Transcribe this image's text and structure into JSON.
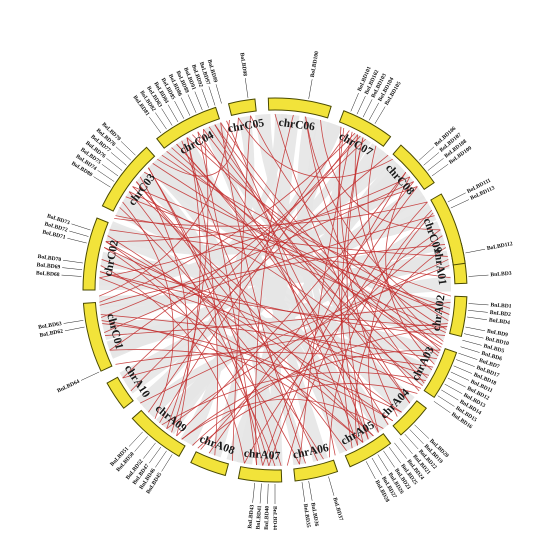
{
  "colors": {
    "chromosome_fill": "#f2e33a",
    "chromosome_stroke": "#6b6200",
    "synteny_background": "#e6e6e6",
    "duplicated_pair_link": "#c22b2b"
  },
  "chromosomes": [
    {
      "name": "chrA01",
      "start": -14,
      "end": -2
    },
    {
      "name": "chrA02",
      "start": 2,
      "end": 14
    },
    {
      "name": "chrA03",
      "start": 19,
      "end": 34
    },
    {
      "name": "chrA04",
      "start": 38,
      "end": 49
    },
    {
      "name": "chrA05",
      "start": 53,
      "end": 67
    },
    {
      "name": "chrA06",
      "start": 71,
      "end": 84
    },
    {
      "name": "chrA07",
      "start": 88,
      "end": 101
    },
    {
      "name": "chrA08",
      "start": 105,
      "end": 116
    },
    {
      "name": "chrA09",
      "start": 120,
      "end": 138
    },
    {
      "name": "chrA10",
      "start": 142,
      "end": 151
    },
    {
      "name": "chrC01",
      "start": 155,
      "end": 176
    },
    {
      "name": "chrC02",
      "start": 180,
      "end": 202
    },
    {
      "name": "chrC03",
      "start": 206,
      "end": 228
    },
    {
      "name": "chrC04",
      "start": 232,
      "end": 252
    },
    {
      "name": "chrC05",
      "start": 256,
      "end": 264
    },
    {
      "name": "chrC06",
      "start": 268,
      "end": 287
    },
    {
      "name": "chrC07",
      "start": 291,
      "end": 307
    },
    {
      "name": "chrC08",
      "start": 311,
      "end": 326
    },
    {
      "name": "chrC09",
      "start": 330,
      "end": 352
    }
  ],
  "genes": [
    {
      "label": "BoLBD112",
      "angle": -11
    },
    {
      "label": "BnLBD3",
      "angle": -4
    },
    {
      "label": "BnLBD1",
      "angle": 4
    },
    {
      "label": "BnLBD2",
      "angle": 6
    },
    {
      "label": "BnLBD4",
      "angle": 8
    },
    {
      "label": "BnLBD9",
      "angle": 11
    },
    {
      "label": "BnLBD10",
      "angle": 13
    },
    {
      "label": "BnLBD5",
      "angle": 15
    },
    {
      "label": "BnLBD6",
      "angle": 17
    },
    {
      "label": "BnLBD7",
      "angle": 19
    },
    {
      "label": "BnLBD17",
      "angle": 21
    },
    {
      "label": "BnLBD18",
      "angle": 23
    },
    {
      "label": "BnLBD11",
      "angle": 25
    },
    {
      "label": "BnLBD12",
      "angle": 27
    },
    {
      "label": "BnLBD13",
      "angle": 29
    },
    {
      "label": "BnLBD14",
      "angle": 31
    },
    {
      "label": "BnLBD15",
      "angle": 33
    },
    {
      "label": "BnLBD16",
      "angle": 35
    },
    {
      "label": "BnLBD20",
      "angle": 44
    },
    {
      "label": "BnLBD19",
      "angle": 46
    },
    {
      "label": "BnLBD22",
      "angle": 48
    },
    {
      "label": "BnLBD21",
      "angle": 50
    },
    {
      "label": "BnLBD24",
      "angle": 52
    },
    {
      "label": "BnLBD25",
      "angle": 54
    },
    {
      "label": "BnLBD23",
      "angle": 56
    },
    {
      "label": "BnLBD26",
      "angle": 58
    },
    {
      "label": "BnLBD27",
      "angle": 60
    },
    {
      "label": "BnLBD28",
      "angle": 62
    },
    {
      "label": "BnLBD37",
      "angle": 74
    },
    {
      "label": "BnLBD36",
      "angle": 80
    },
    {
      "label": "BnLBD35",
      "angle": 82
    },
    {
      "label": "BnLBD44",
      "angle": 90
    },
    {
      "label": "BnLBD40",
      "angle": 92
    },
    {
      "label": "BnLBD41",
      "angle": 94
    },
    {
      "label": "BnLBD43",
      "angle": 96
    },
    {
      "label": "BnLBD45",
      "angle": 122
    },
    {
      "label": "BnLBD46",
      "angle": 124
    },
    {
      "label": "BnLBD47",
      "angle": 126
    },
    {
      "label": "BnLBD52",
      "angle": 128
    },
    {
      "label": "BnLBD50",
      "angle": 131
    },
    {
      "label": "BnLBD51",
      "angle": 133
    },
    {
      "label": "BnLBD64",
      "angle": 155
    },
    {
      "label": "BoLBD62",
      "angle": 169
    },
    {
      "label": "BoLBD63",
      "angle": 171
    },
    {
      "label": "BoLBD68",
      "angle": 184
    },
    {
      "label": "BoLBD69",
      "angle": 186
    },
    {
      "label": "BoLBD70",
      "angle": 188
    },
    {
      "label": "BoLBD71",
      "angle": 194
    },
    {
      "label": "BoLBD72",
      "angle": 196
    },
    {
      "label": "BoLBD73",
      "angle": 198
    },
    {
      "label": "BoLBD80",
      "angle": 212
    },
    {
      "label": "BoLBD74",
      "angle": 214
    },
    {
      "label": "BoLBD75",
      "angle": 216
    },
    {
      "label": "BoLBD76",
      "angle": 218
    },
    {
      "label": "BoLBD77",
      "angle": 220
    },
    {
      "label": "BoLBD78",
      "angle": 222
    },
    {
      "label": "BoLBD79",
      "angle": 224
    },
    {
      "label": "BoLBD81",
      "angle": 234
    },
    {
      "label": "BoLBD82",
      "angle": 236
    },
    {
      "label": "BoLBD83",
      "angle": 238
    },
    {
      "label": "BoLBD84",
      "angle": 240
    },
    {
      "label": "BoLBD85",
      "angle": 242
    },
    {
      "label": "BoLBD86",
      "angle": 244
    },
    {
      "label": "BoLBD89",
      "angle": 246
    },
    {
      "label": "BoLBD91",
      "angle": 248
    },
    {
      "label": "BoLBD92",
      "angle": 250
    },
    {
      "label": "BoLBD97",
      "angle": 252
    },
    {
      "label": "BoLBD99",
      "angle": 254
    },
    {
      "label": "BoLBD98",
      "angle": 262
    },
    {
      "label": "BoLBD100",
      "angle": 280
    },
    {
      "label": "BoLBD101",
      "angle": 293
    },
    {
      "label": "BoLBD102",
      "angle": 295
    },
    {
      "label": "BoLBD103",
      "angle": 297
    },
    {
      "label": "BoLBD104",
      "angle": 299
    },
    {
      "label": "BoLBD105",
      "angle": 301
    },
    {
      "label": "BoLBD106",
      "angle": 318
    },
    {
      "label": "BoLBD107",
      "angle": 320
    },
    {
      "label": "BoLBD108",
      "angle": 322
    },
    {
      "label": "BoLBD109",
      "angle": 324
    },
    {
      "label": "BoLBD111",
      "angle": 333
    },
    {
      "label": "BoLBD113",
      "angle": 335
    }
  ],
  "links": [
    [
      -4,
      200
    ],
    [
      4,
      165
    ],
    [
      6,
      216
    ],
    [
      8,
      240
    ],
    [
      11,
      150
    ],
    [
      13,
      262
    ],
    [
      15,
      190
    ],
    [
      17,
      298
    ],
    [
      19,
      226
    ],
    [
      21,
      232
    ],
    [
      23,
      172
    ],
    [
      25,
      320
    ],
    [
      27,
      250
    ],
    [
      29,
      186
    ],
    [
      31,
      130
    ],
    [
      33,
      214
    ],
    [
      35,
      246
    ],
    [
      44,
      160
    ],
    [
      46,
      292
    ],
    [
      48,
      196
    ],
    [
      50,
      236
    ],
    [
      52,
      122
    ],
    [
      54,
      334
    ],
    [
      56,
      218
    ],
    [
      58,
      300
    ],
    [
      60,
      170
    ],
    [
      62,
      244
    ],
    [
      74,
      208
    ],
    [
      80,
      252
    ],
    [
      82,
      296
    ],
    [
      90,
      194
    ],
    [
      92,
      324
    ],
    [
      94,
      224
    ],
    [
      96,
      276
    ],
    [
      122,
      20
    ],
    [
      124,
      318
    ],
    [
      126,
      240
    ],
    [
      128,
      350
    ],
    [
      131,
      298
    ],
    [
      133,
      210
    ],
    [
      155,
      26
    ],
    [
      169,
      48
    ],
    [
      171,
      322
    ],
    [
      184,
      60
    ],
    [
      186,
      12
    ],
    [
      188,
      100
    ],
    [
      194,
      34
    ],
    [
      196,
      82
    ],
    [
      198,
      56
    ],
    [
      212,
      14
    ],
    [
      214,
      92
    ],
    [
      216,
      44
    ],
    [
      218,
      66
    ],
    [
      220,
      124
    ],
    [
      222,
      8
    ],
    [
      224,
      88
    ],
    [
      234,
      30
    ],
    [
      236,
      54
    ],
    [
      238,
      76
    ],
    [
      240,
      110
    ],
    [
      242,
      18
    ],
    [
      244,
      96
    ],
    [
      246,
      128
    ],
    [
      248,
      40
    ],
    [
      250,
      58
    ],
    [
      252,
      22
    ],
    [
      254,
      70
    ],
    [
      262,
      104
    ],
    [
      280,
      32
    ],
    [
      293,
      60
    ],
    [
      295,
      136
    ],
    [
      297,
      176
    ],
    [
      299,
      150
    ],
    [
      301,
      160
    ],
    [
      318,
      94
    ],
    [
      320,
      184
    ],
    [
      322,
      112
    ],
    [
      324,
      196
    ],
    [
      333,
      72
    ],
    [
      335,
      166
    ],
    [
      -11,
      205
    ],
    [
      -8,
      140
    ],
    [
      2,
      230
    ],
    [
      10,
      280
    ],
    [
      40,
      270
    ],
    [
      64,
      300
    ],
    [
      86,
      330
    ],
    [
      115,
      340
    ],
    [
      145,
      310
    ],
    [
      175,
      345
    ],
    [
      178,
      255
    ],
    [
      204,
      330
    ],
    [
      228,
      258
    ],
    [
      258,
      312
    ],
    [
      285,
      340
    ],
    [
      305,
      20
    ],
    [
      342,
      100
    ],
    [
      346,
      62
    ],
    [
      12,
      118
    ],
    [
      36,
      116
    ]
  ],
  "gray_ribbons": [
    [
      -10,
      182,
      6,
      4
    ],
    [
      8,
      226,
      6,
      5
    ],
    [
      22,
      160,
      5,
      5
    ],
    [
      42,
      232,
      6,
      4
    ],
    [
      60,
      198,
      6,
      5
    ],
    [
      75,
      248,
      5,
      4
    ],
    [
      92,
      212,
      6,
      5
    ],
    [
      110,
      250,
      4,
      4
    ],
    [
      128,
      306,
      6,
      5
    ],
    [
      146,
      316,
      4,
      4
    ],
    [
      160,
      330,
      6,
      5
    ],
    [
      172,
      300,
      5,
      4
    ],
    [
      190,
      344,
      5,
      5
    ],
    [
      208,
      30,
      6,
      4
    ],
    [
      220,
      120,
      5,
      5
    ],
    [
      238,
      60,
      6,
      5
    ],
    [
      260,
      140,
      4,
      4
    ],
    [
      275,
      90,
      6,
      5
    ],
    [
      290,
      170,
      5,
      4
    ],
    [
      300,
      40,
      6,
      5
    ],
    [
      315,
      100,
      6,
      5
    ],
    [
      326,
      150,
      5,
      4
    ],
    [
      340,
      64,
      6,
      5
    ],
    [
      350,
      130,
      5,
      5
    ],
    [
      -2,
      104,
      5,
      4
    ],
    [
      14,
      176,
      5,
      4
    ],
    [
      30,
      266,
      6,
      5
    ],
    [
      52,
      286,
      5,
      4
    ],
    [
      66,
      236,
      5,
      4
    ],
    [
      100,
      290,
      5,
      4
    ],
    [
      136,
      28,
      5,
      4
    ],
    [
      166,
      82,
      5,
      4
    ],
    [
      184,
      272,
      5,
      4
    ],
    [
      200,
      320,
      6,
      4
    ],
    [
      226,
      94,
      5,
      4
    ],
    [
      250,
      12,
      5,
      4
    ],
    [
      282,
      58,
      5,
      4
    ],
    [
      310,
      200,
      5,
      4
    ],
    [
      334,
      228,
      5,
      4
    ],
    [
      5,
      300,
      4,
      4
    ]
  ]
}
